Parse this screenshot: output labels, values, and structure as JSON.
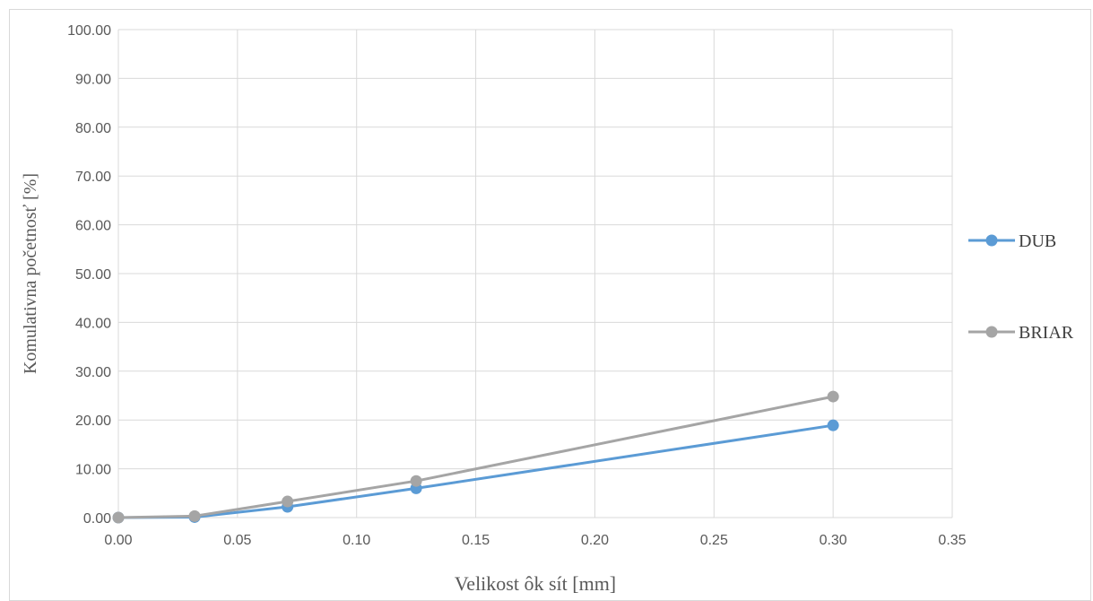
{
  "chart_data": {
    "type": "line",
    "title": "",
    "xlabel": "Velikost ôk sít [mm]",
    "ylabel": "Komulativna početnosť [%]",
    "xlim": [
      0,
      0.35
    ],
    "ylim": [
      0,
      100
    ],
    "x_ticks": [
      "0.00",
      "0.05",
      "0.10",
      "0.15",
      "0.20",
      "0.25",
      "0.30",
      "0.35"
    ],
    "y_ticks": [
      "0.00",
      "10.00",
      "20.00",
      "30.00",
      "40.00",
      "50.00",
      "60.00",
      "70.00",
      "80.00",
      "90.00",
      "100.00"
    ],
    "grid": true,
    "legend_position": "right",
    "series": [
      {
        "name": "DUB",
        "color": "#5b9bd5",
        "x": [
          0,
          0.032,
          0.071,
          0.125,
          0.3
        ],
        "y": [
          0,
          0.1,
          2.2,
          6.0,
          18.9
        ]
      },
      {
        "name": "BRIAR",
        "color": "#a5a5a5",
        "x": [
          0,
          0.032,
          0.071,
          0.125,
          0.3
        ],
        "y": [
          0,
          0.3,
          3.3,
          7.5,
          24.8
        ]
      }
    ]
  }
}
